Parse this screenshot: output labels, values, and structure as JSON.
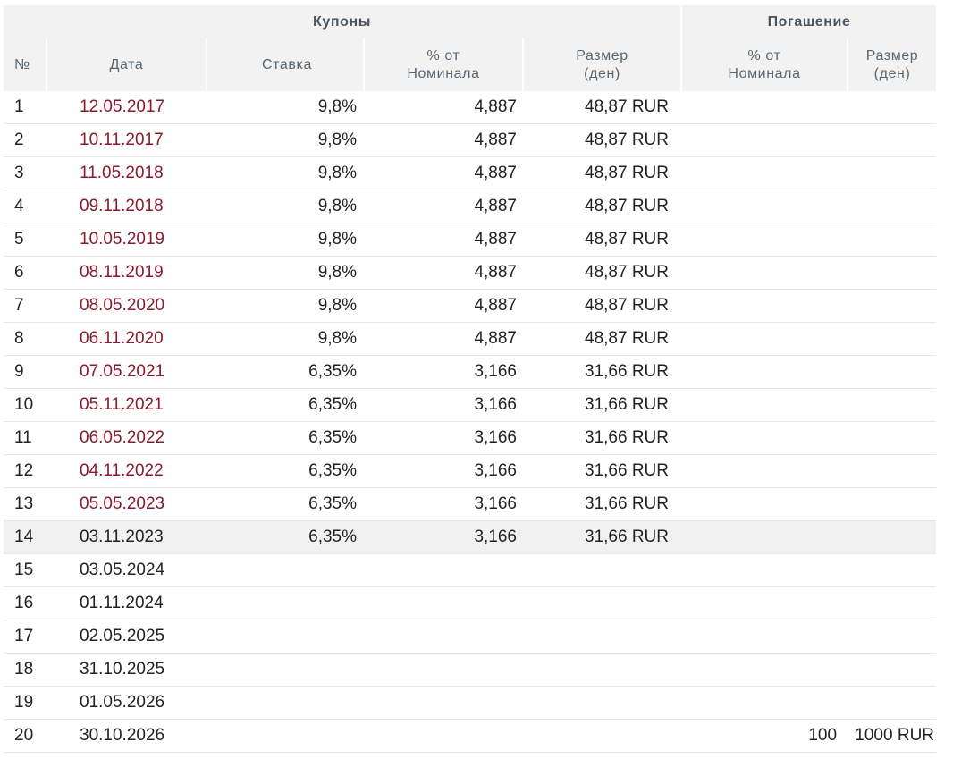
{
  "header": {
    "coupons_group": "Купоны",
    "redemption_group": "Погашение",
    "col_num": "№",
    "col_date": "Дата",
    "col_rate": "Ставка",
    "col_pct_line1": "% от",
    "col_pct_line2": "Номинала",
    "col_amount_line1": "Размер",
    "col_amount_line2": "(ден)",
    "col_red_pct_line1": "% от",
    "col_red_pct_line2": "Номинала",
    "col_red_amount_line1": "Размер",
    "col_red_amount_line2": "(ден)"
  },
  "colors": {
    "past_date": "#8b1a2e",
    "header_bg": "#f2f2f2",
    "highlight_row": "#f1f1f1"
  },
  "rows": [
    {
      "num": "1",
      "date": "12.05.2017",
      "rate": "9,8%",
      "pct": "4,887",
      "amount": "48,87 RUR",
      "red_pct": "",
      "red_amount": "",
      "past": true
    },
    {
      "num": "2",
      "date": "10.11.2017",
      "rate": "9,8%",
      "pct": "4,887",
      "amount": "48,87 RUR",
      "red_pct": "",
      "red_amount": "",
      "past": true
    },
    {
      "num": "3",
      "date": "11.05.2018",
      "rate": "9,8%",
      "pct": "4,887",
      "amount": "48,87 RUR",
      "red_pct": "",
      "red_amount": "",
      "past": true
    },
    {
      "num": "4",
      "date": "09.11.2018",
      "rate": "9,8%",
      "pct": "4,887",
      "amount": "48,87 RUR",
      "red_pct": "",
      "red_amount": "",
      "past": true
    },
    {
      "num": "5",
      "date": "10.05.2019",
      "rate": "9,8%",
      "pct": "4,887",
      "amount": "48,87 RUR",
      "red_pct": "",
      "red_amount": "",
      "past": true
    },
    {
      "num": "6",
      "date": "08.11.2019",
      "rate": "9,8%",
      "pct": "4,887",
      "amount": "48,87 RUR",
      "red_pct": "",
      "red_amount": "",
      "past": true
    },
    {
      "num": "7",
      "date": "08.05.2020",
      "rate": "9,8%",
      "pct": "4,887",
      "amount": "48,87 RUR",
      "red_pct": "",
      "red_amount": "",
      "past": true
    },
    {
      "num": "8",
      "date": "06.11.2020",
      "rate": "9,8%",
      "pct": "4,887",
      "amount": "48,87 RUR",
      "red_pct": "",
      "red_amount": "",
      "past": true
    },
    {
      "num": "9",
      "date": "07.05.2021",
      "rate": "6,35%",
      "pct": "3,166",
      "amount": "31,66 RUR",
      "red_pct": "",
      "red_amount": "",
      "past": true
    },
    {
      "num": "10",
      "date": "05.11.2021",
      "rate": "6,35%",
      "pct": "3,166",
      "amount": "31,66 RUR",
      "red_pct": "",
      "red_amount": "",
      "past": true
    },
    {
      "num": "11",
      "date": "06.05.2022",
      "rate": "6,35%",
      "pct": "3,166",
      "amount": "31,66 RUR",
      "red_pct": "",
      "red_amount": "",
      "past": true
    },
    {
      "num": "12",
      "date": "04.11.2022",
      "rate": "6,35%",
      "pct": "3,166",
      "amount": "31,66 RUR",
      "red_pct": "",
      "red_amount": "",
      "past": true
    },
    {
      "num": "13",
      "date": "05.05.2023",
      "rate": "6,35%",
      "pct": "3,166",
      "amount": "31,66 RUR",
      "red_pct": "",
      "red_amount": "",
      "past": true
    },
    {
      "num": "14",
      "date": "03.11.2023",
      "rate": "6,35%",
      "pct": "3,166",
      "amount": "31,66 RUR",
      "red_pct": "",
      "red_amount": "",
      "past": false,
      "highlight": true
    },
    {
      "num": "15",
      "date": "03.05.2024",
      "rate": "",
      "pct": "",
      "amount": "",
      "red_pct": "",
      "red_amount": "",
      "past": false
    },
    {
      "num": "16",
      "date": "01.11.2024",
      "rate": "",
      "pct": "",
      "amount": "",
      "red_pct": "",
      "red_amount": "",
      "past": false
    },
    {
      "num": "17",
      "date": "02.05.2025",
      "rate": "",
      "pct": "",
      "amount": "",
      "red_pct": "",
      "red_amount": "",
      "past": false
    },
    {
      "num": "18",
      "date": "31.10.2025",
      "rate": "",
      "pct": "",
      "amount": "",
      "red_pct": "",
      "red_amount": "",
      "past": false
    },
    {
      "num": "19",
      "date": "01.05.2026",
      "rate": "",
      "pct": "",
      "amount": "",
      "red_pct": "",
      "red_amount": "",
      "past": false
    },
    {
      "num": "20",
      "date": "30.10.2026",
      "rate": "",
      "pct": "",
      "amount": "",
      "red_pct": "100",
      "red_amount": "1000 RUR",
      "past": false
    }
  ]
}
